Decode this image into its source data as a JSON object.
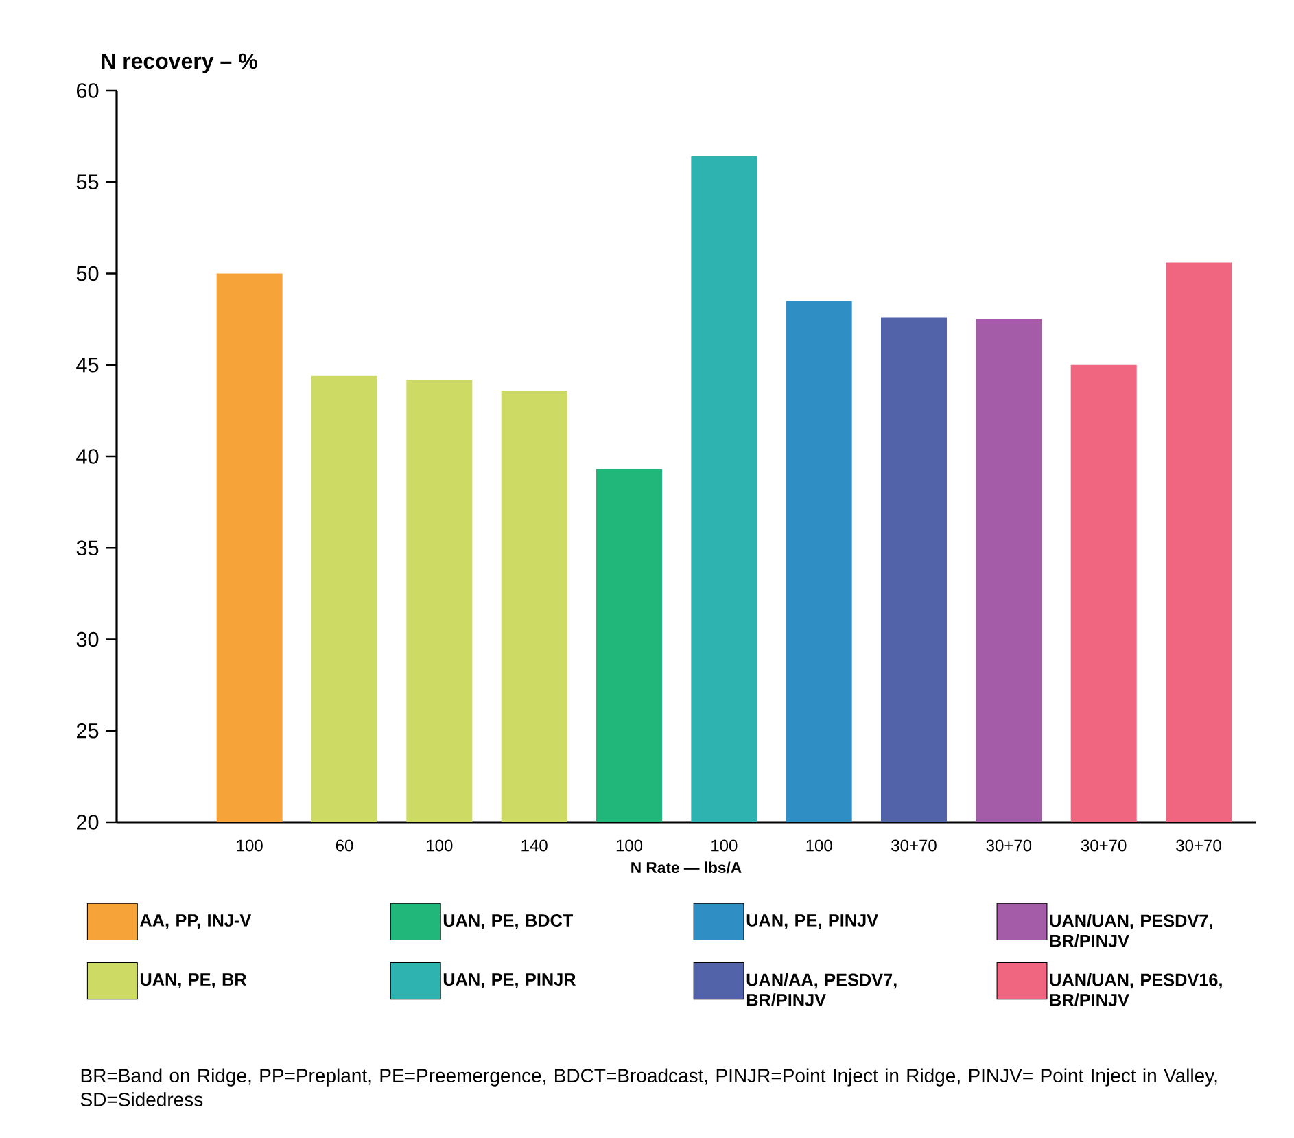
{
  "chart_data": {
    "type": "bar",
    "ylabel": "N recovery – %",
    "xlabel": "N Rate — lbs/A",
    "categories": [
      "100",
      "60",
      "100",
      "140",
      "100",
      "100",
      "100",
      "30+70",
      "30+70",
      "30+70",
      "30+70"
    ],
    "series": [
      {
        "name": "AA, PP, INJ-V",
        "color": "#f6a43a",
        "values": [
          50.0,
          null,
          null,
          null,
          null,
          null,
          null,
          null,
          null,
          null,
          null
        ]
      },
      {
        "name": "UAN, PE, BDCT",
        "color": "#22b77a",
        "values": [
          null,
          null,
          null,
          null,
          39.3,
          null,
          null,
          null,
          null,
          null,
          null
        ]
      },
      {
        "name": "UAN, PE, PINJV",
        "color": "#2f8fc4",
        "values": [
          null,
          null,
          null,
          null,
          null,
          null,
          48.5,
          null,
          null,
          null,
          null
        ]
      },
      {
        "name": "UAN/UAN, PESDV7, BR/PINJV",
        "color": "#a45ca8",
        "values": [
          null,
          null,
          null,
          null,
          null,
          null,
          null,
          null,
          47.5,
          null,
          null
        ]
      },
      {
        "name": "UAN, PE, BR",
        "color": "#cddb64",
        "values": [
          null,
          44.4,
          44.2,
          43.6,
          null,
          null,
          null,
          null,
          null,
          null,
          null
        ]
      },
      {
        "name": "UAN, PE, PINJR",
        "color": "#2fb3b0",
        "values": [
          null,
          null,
          null,
          null,
          null,
          56.4,
          null,
          null,
          null,
          null,
          null
        ]
      },
      {
        "name": "UAN/AA, PESDV7, BR/PINJV",
        "color": "#5363aa",
        "values": [
          null,
          null,
          null,
          null,
          null,
          null,
          null,
          47.6,
          null,
          null,
          null
        ]
      },
      {
        "name": "UAN/UAN, PESDV16, BR/PINJV",
        "color": "#f0657f",
        "values": [
          null,
          null,
          null,
          null,
          null,
          null,
          null,
          null,
          null,
          45.0,
          50.6
        ]
      }
    ],
    "ylim": [
      20,
      60
    ],
    "yticks": [
      20,
      25,
      30,
      35,
      40,
      45,
      50,
      55,
      60
    ],
    "legend": "bottom",
    "annotations": [
      "BR=Band on Ridge, PP=Preplant, PE=Preemergence, BDCT=Broadcast, PINJR=Point Inject in Ridge, PINJV= Point Inject in Valley, SD=Sidedress"
    ]
  }
}
